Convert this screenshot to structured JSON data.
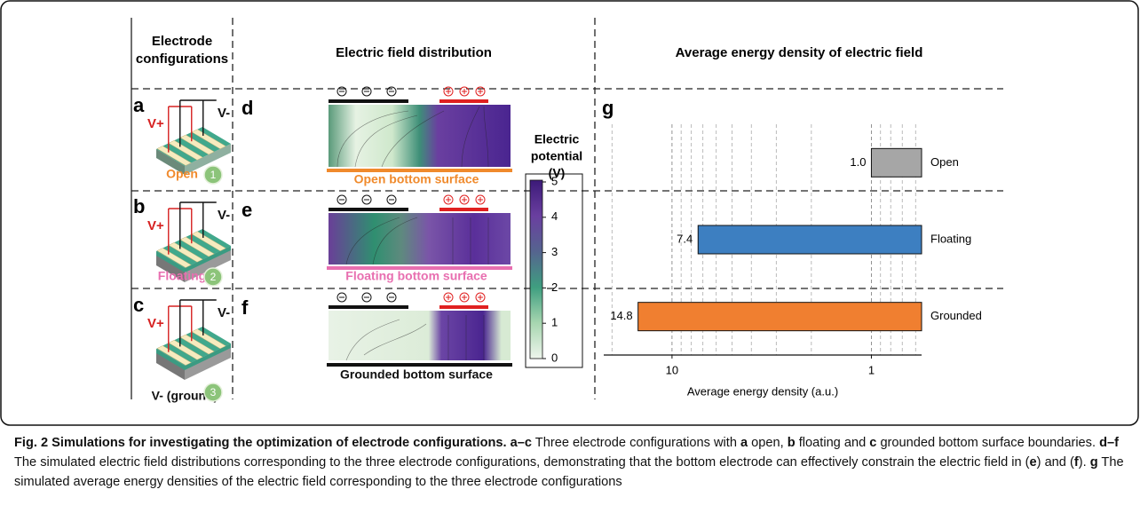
{
  "figure": {
    "headers": {
      "col1": [
        "Electrode",
        "configurations"
      ],
      "col2": "Electric field distribution",
      "col3": "Average energy density of electric field"
    },
    "panels": {
      "a": "a",
      "b": "b",
      "c": "c",
      "d": "d",
      "e": "e",
      "f": "f",
      "g": "g"
    },
    "devices": [
      {
        "vplus": "V+",
        "vminus": "V-",
        "label": "Open",
        "label_color": "#f08a2c",
        "number": "1"
      },
      {
        "vplus": "V+",
        "vminus": "V-",
        "label": "Floating",
        "label_color": "#e86fb0",
        "number": "2"
      },
      {
        "vplus": "V+",
        "vminus": "V-",
        "label": "V- (ground)",
        "label_color": "#111111",
        "number": "3"
      }
    ],
    "fields": [
      {
        "label": "Open bottom surface",
        "color": "#f08a2c"
      },
      {
        "label": "Floating bottom surface",
        "color": "#e86fb0"
      },
      {
        "label": "Grounded bottom surface",
        "color": "#111111"
      }
    ],
    "colorbar": {
      "title": [
        "Electric",
        "potential",
        "(V)"
      ],
      "ylim": [
        0,
        5
      ],
      "ticks": [
        0,
        1,
        2,
        3,
        4,
        5
      ]
    }
  },
  "chart_data": {
    "type": "hbar",
    "xlabel": "Average energy density (a.u.)",
    "categories": [
      "Open",
      "Floating",
      "Grounded"
    ],
    "values": [
      1.0,
      7.4,
      14.8
    ],
    "value_labels": [
      "1.0",
      "7.4",
      "14.8"
    ],
    "colors": [
      "#a6a6a6",
      "#3d7fc1",
      "#f07f30"
    ],
    "xlim": [
      22,
      0.56
    ],
    "xscale": "log",
    "reversed": true,
    "xticks": [
      10,
      1
    ],
    "xminor": [
      20,
      9,
      8,
      7,
      6,
      5,
      4,
      3,
      2,
      0.9,
      0.8,
      0.7,
      0.6
    ],
    "grid": true
  },
  "caption": [
    {
      "text": "Fig. 2 Simulations for investigating the optimization of electrode configurations. a–c",
      "bold": true
    },
    {
      "text": " Three electrode configurations with ",
      "bold": false
    },
    {
      "text": "a",
      "bold": true
    },
    {
      "text": " open, ",
      "bold": false
    },
    {
      "text": "b",
      "bold": true
    },
    {
      "text": " floating and ",
      "bold": false
    },
    {
      "text": "c",
      "bold": true
    },
    {
      "text": " grounded bottom surface boundaries. ",
      "bold": false
    },
    {
      "text": "d–f",
      "bold": true
    },
    {
      "text": " The simulated electric field distributions corresponding to the three electrode configurations, demonstrating that the bottom electrode can effectively constrain the electric field in (",
      "bold": false
    },
    {
      "text": "e",
      "bold": true
    },
    {
      "text": ") and (",
      "bold": false
    },
    {
      "text": "f",
      "bold": true
    },
    {
      "text": "). ",
      "bold": false
    },
    {
      "text": "g",
      "bold": true
    },
    {
      "text": " The simulated average energy densities of the electric field corresponding to the three electrode configurations",
      "bold": false
    }
  ]
}
